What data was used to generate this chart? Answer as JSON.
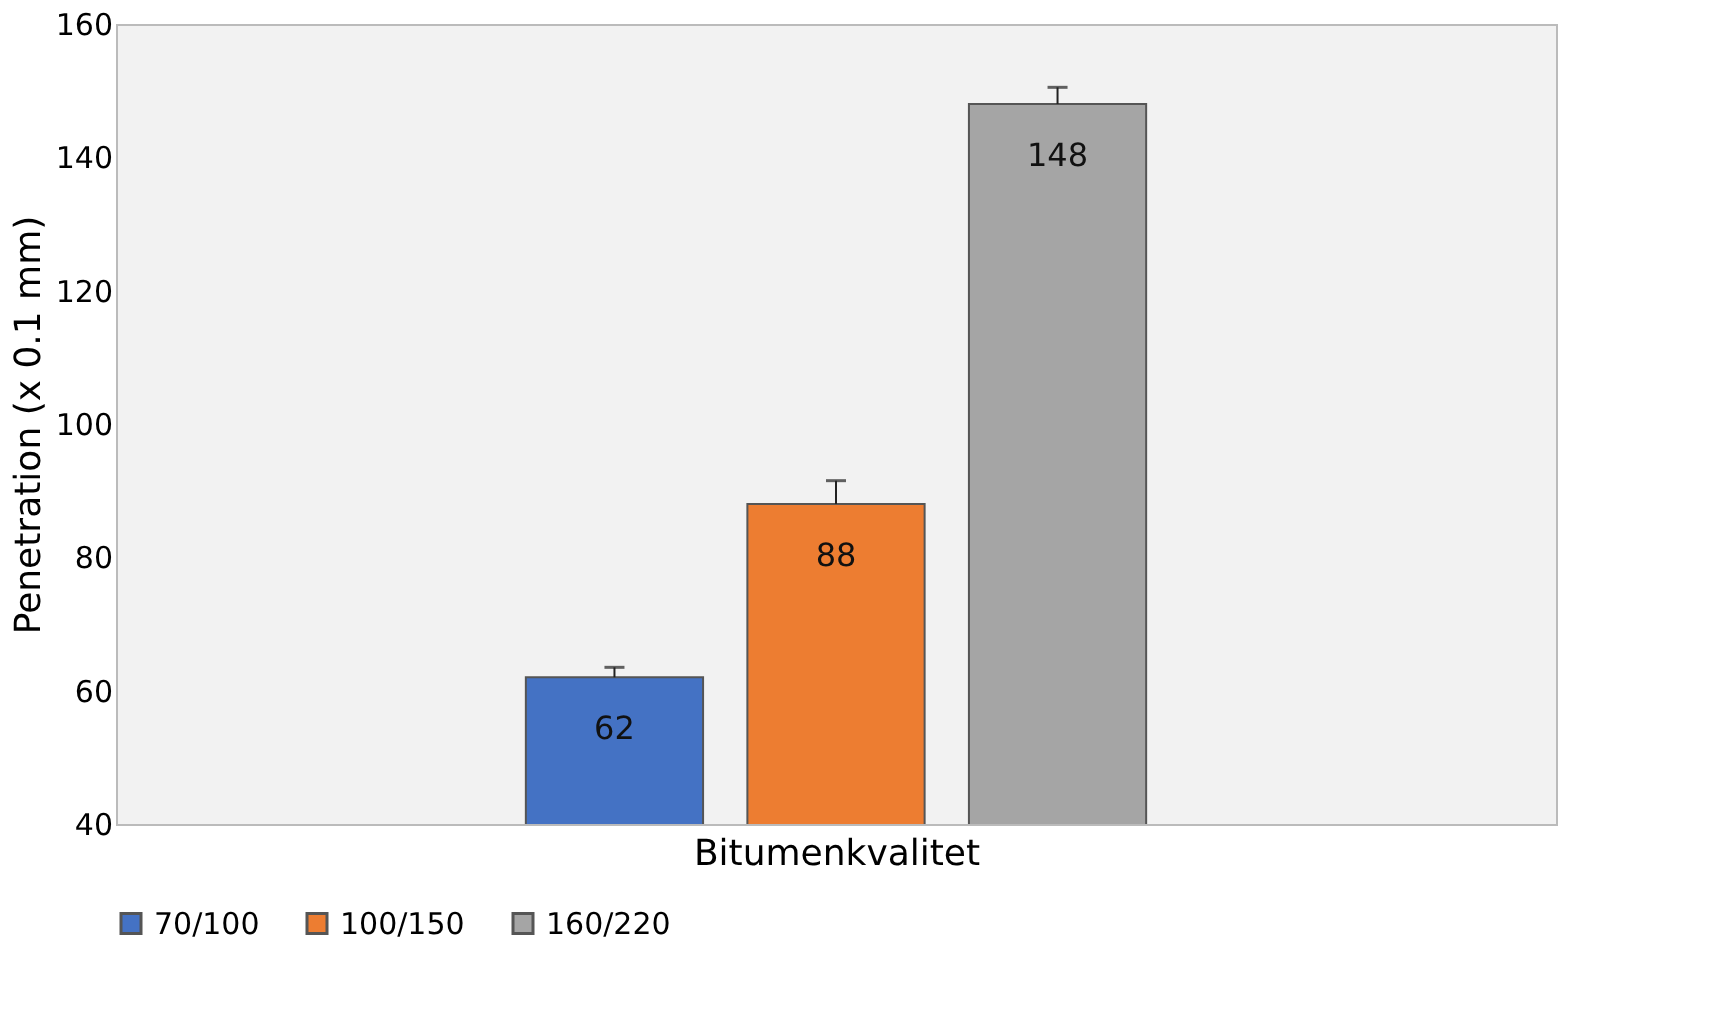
{
  "chart_data": {
    "type": "bar",
    "xlabel": "Bitumenkvalitet",
    "ylabel": "Penetration (x 0.1 mm)",
    "categories": [
      null
    ],
    "series": [
      {
        "name": "70/100",
        "color": "#4472c4",
        "values": [
          62
        ],
        "errors": [
          [
            62,
            63.5
          ]
        ]
      },
      {
        "name": "100/150",
        "color": "#ed7d31",
        "values": [
          88
        ],
        "errors": [
          [
            88,
            91.5
          ]
        ]
      },
      {
        "name": "160/220",
        "color": "#a5a5a5",
        "values": [
          148
        ],
        "errors": [
          [
            148,
            150.5
          ]
        ]
      }
    ],
    "ylim": [
      40,
      160
    ],
    "yticks": [
      40,
      60,
      80,
      100,
      120,
      140,
      160
    ],
    "grid": false,
    "legend": "bottom",
    "data_labels": true
  }
}
